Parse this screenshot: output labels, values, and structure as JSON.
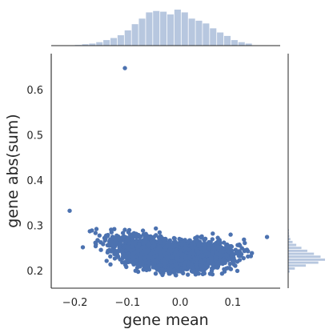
{
  "chart_data": {
    "type": "scatter",
    "title": "",
    "xlabel": "gene mean",
    "ylabel": "gene abs(sum)",
    "xlim": [
      -0.245,
      0.19
    ],
    "ylim": [
      0.162,
      0.68
    ],
    "xticks": [
      -0.2,
      -0.1,
      0.0,
      0.1
    ],
    "xtick_labels": [
      "−0.2",
      "−0.1",
      "0.0",
      "0.1"
    ],
    "yticks": [
      0.2,
      0.3,
      0.4,
      0.5,
      0.6
    ],
    "ytick_labels": [
      "0.2",
      "0.3",
      "0.4",
      "0.5",
      "0.6"
    ],
    "grid": false,
    "legend": "none",
    "colors": {
      "points": "#4c72b0",
      "histogram": "#4c72b0",
      "axes": "#262626"
    },
    "points": [
      {
        "x": -0.105,
        "y": 0.648
      },
      {
        "x": -0.21,
        "y": 0.333
      },
      {
        "x": 0.165,
        "y": 0.275
      }
    ],
    "cluster": {
      "description_of_bulk": "dense band of several thousand points",
      "x_range": [
        -0.2,
        0.14
      ],
      "y_center_at_x_min": 0.285,
      "y_center_at_x_mid": 0.235,
      "y_center_at_x_max": 0.245,
      "y_spread": 0.025
    },
    "x_marginal_histogram": {
      "bin_start": -0.2,
      "bin_width": 0.0135,
      "counts": [
        2,
        4,
        6,
        10,
        16,
        22,
        30,
        44,
        62,
        78,
        96,
        100,
        98,
        90,
        104,
        96,
        78,
        72,
        64,
        50,
        38,
        28,
        16,
        10,
        6
      ]
    },
    "y_marginal_histogram": {
      "bin_start": 0.195,
      "bin_width": 0.0065,
      "counts": [
        4,
        18,
        48,
        82,
        100,
        88,
        70,
        52,
        36,
        22,
        12,
        6,
        3,
        2,
        2,
        1,
        1
      ]
    }
  }
}
